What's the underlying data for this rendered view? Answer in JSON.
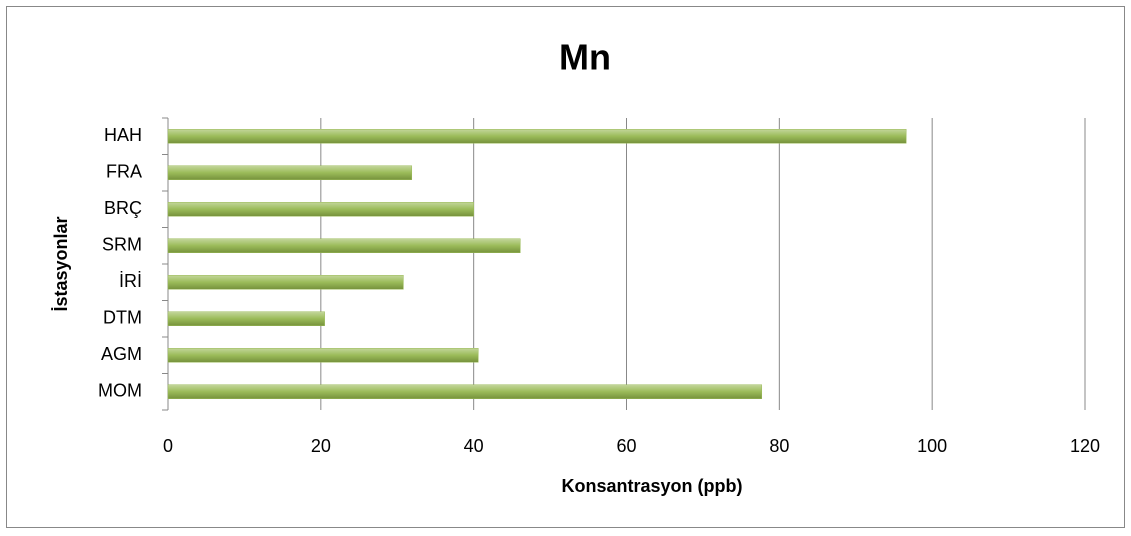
{
  "chart_data": {
    "type": "bar",
    "orientation": "horizontal",
    "title": "Mn",
    "x_label": "Konsantrasyon (ppb)",
    "y_label": "İstasyonlar",
    "categories": [
      "MOM",
      "AGM",
      "DTM",
      "İRİ",
      "SRM",
      "BRÇ",
      "FRA",
      "HAH"
    ],
    "values": [
      77.7,
      40.6,
      20.5,
      30.8,
      46.1,
      40.0,
      31.9,
      96.6
    ],
    "color": "#9bbb59",
    "xlim": [
      0,
      120
    ],
    "xticks": [
      0,
      20,
      40,
      60,
      80,
      100,
      120
    ],
    "grid": true
  }
}
